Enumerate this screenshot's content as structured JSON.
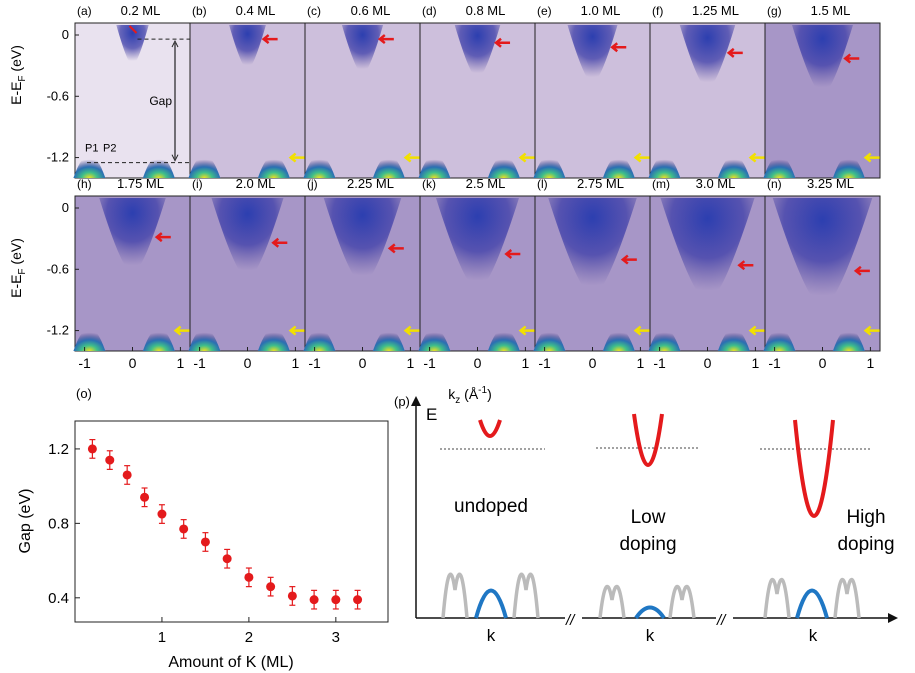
{
  "arpes": {
    "y_axis_label": "E-E",
    "y_axis_sub": "F",
    "y_axis_unit": " (eV)",
    "y_ticks": [
      "0",
      "-0.6",
      "-1.2"
    ],
    "x_ticks": [
      "-1",
      "0",
      "1"
    ],
    "x_axis_label": "k",
    "x_axis_sub": "z",
    "x_axis_unit": " (Å",
    "x_axis_sup": "-1",
    "x_axis_close": ")",
    "gap_label": "Gap",
    "peak_labels": [
      "P1",
      "P2"
    ],
    "panels": [
      {
        "letter": "(a)",
        "coverage": "0.2 ML",
        "coverage_ml": 0.2
      },
      {
        "letter": "(b)",
        "coverage": "0.4 ML",
        "coverage_ml": 0.4
      },
      {
        "letter": "(c)",
        "coverage": "0.6 ML",
        "coverage_ml": 0.6
      },
      {
        "letter": "(d)",
        "coverage": "0.8 ML",
        "coverage_ml": 0.8
      },
      {
        "letter": "(e)",
        "coverage": "1.0 ML",
        "coverage_ml": 1.0
      },
      {
        "letter": "(f)",
        "coverage": "1.25 ML",
        "coverage_ml": 1.25
      },
      {
        "letter": "(g)",
        "coverage": "1.5 ML",
        "coverage_ml": 1.5
      },
      {
        "letter": "(h)",
        "coverage": "1.75 ML",
        "coverage_ml": 1.75
      },
      {
        "letter": "(i)",
        "coverage": "2.0 ML",
        "coverage_ml": 2.0
      },
      {
        "letter": "(j)",
        "coverage": "2.25 ML",
        "coverage_ml": 2.25
      },
      {
        "letter": "(k)",
        "coverage": "2.5 ML",
        "coverage_ml": 2.5
      },
      {
        "letter": "(l)",
        "coverage": "2.75 ML",
        "coverage_ml": 2.75
      },
      {
        "letter": "(m)",
        "coverage": "3.0 ML",
        "coverage_ml": 3.0
      },
      {
        "letter": "(n)",
        "coverage": "3.25 ML",
        "coverage_ml": 3.25
      }
    ]
  },
  "chart_data": {
    "type": "scatter",
    "panel_letter": "(o)",
    "title": "",
    "xlabel": "Amount of K (ML)",
    "ylabel": "Gap (eV)",
    "xlim": [
      0,
      3.6
    ],
    "ylim": [
      0.27,
      1.35
    ],
    "xticks": [
      1,
      2,
      3
    ],
    "yticks": [
      0.4,
      0.8,
      1.2
    ],
    "ytick_labels": [
      "0.4",
      "0.8",
      "1.2"
    ],
    "grid": false,
    "marker_color": "#e41a1c",
    "series": [
      {
        "x": [
          0.2,
          0.4,
          0.6,
          0.8,
          1.0,
          1.25,
          1.5,
          1.75,
          2.0,
          2.25,
          2.5,
          2.75,
          3.0,
          3.25
        ],
        "y": [
          1.2,
          1.14,
          1.06,
          0.94,
          0.85,
          0.77,
          0.7,
          0.61,
          0.51,
          0.46,
          0.41,
          0.39,
          0.39,
          0.39
        ],
        "error": 0.05
      }
    ]
  },
  "schematic": {
    "panel_letter": "(p)",
    "e_axis_label": "E",
    "cases": [
      {
        "label_lines": [
          "undoped"
        ],
        "k_label": "k"
      },
      {
        "label_lines": [
          "Low",
          "doping"
        ],
        "k_label": "k"
      },
      {
        "label_lines": [
          "High",
          "doping"
        ],
        "k_label": "k"
      }
    ],
    "break_mark": "//",
    "conduction_color": "#e41a1c",
    "valence_color": "#1f77c4",
    "bulk_color": "#bbbbbb"
  }
}
